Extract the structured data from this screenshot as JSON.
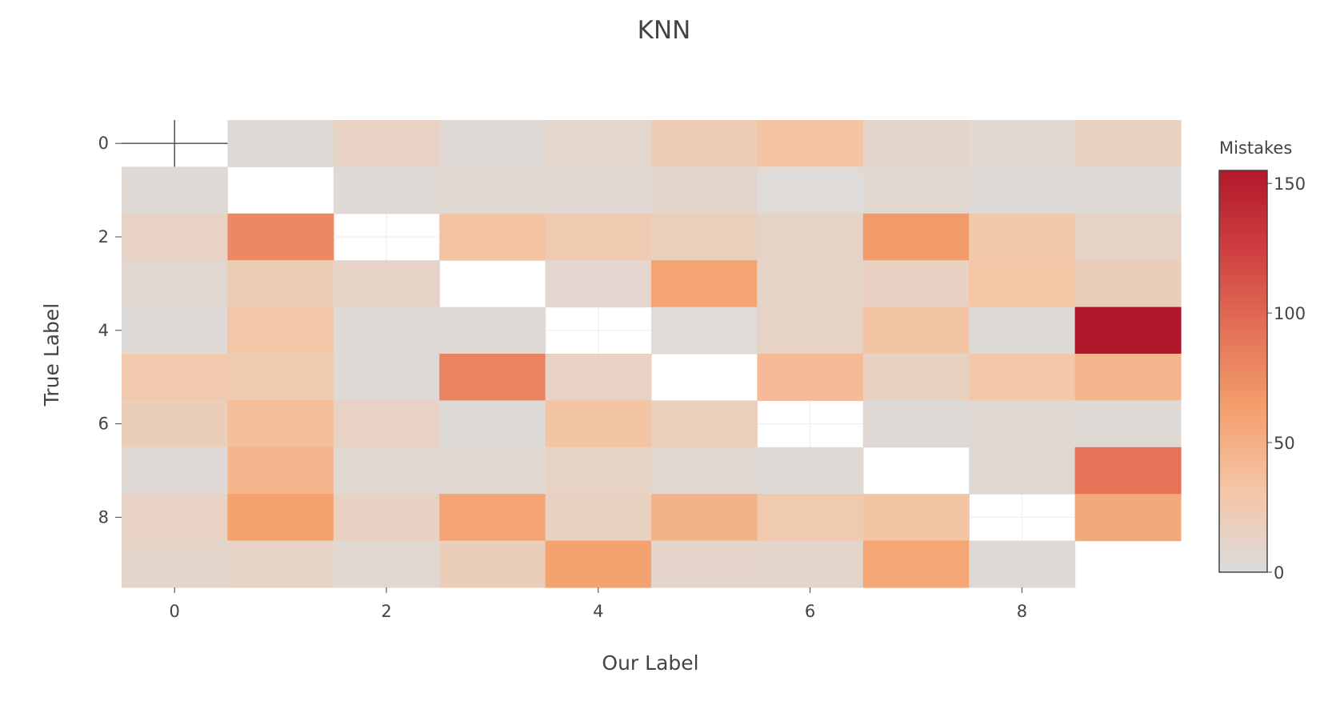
{
  "chart_data": {
    "type": "heatmap",
    "title": "KNN",
    "xlabel": "Our Label",
    "ylabel": "True Label",
    "x_categories": [
      0,
      1,
      2,
      3,
      4,
      5,
      6,
      7,
      8,
      9
    ],
    "y_categories": [
      0,
      1,
      2,
      3,
      4,
      5,
      6,
      7,
      8,
      9
    ],
    "x_tick_labels": [
      "0",
      "2",
      "4",
      "6",
      "8"
    ],
    "y_tick_labels": [
      "0",
      "2",
      "4",
      "6",
      "8"
    ],
    "z": [
      [
        null,
        3,
        14,
        4,
        9,
        22,
        33,
        10,
        5,
        16
      ],
      [
        4,
        null,
        4,
        6,
        5,
        10,
        2,
        6,
        3,
        3
      ],
      [
        14,
        78,
        null,
        33,
        25,
        18,
        12,
        65,
        28,
        13
      ],
      [
        7,
        22,
        12,
        null,
        8,
        60,
        12,
        15,
        31,
        20
      ],
      [
        3,
        30,
        4,
        3,
        null,
        2,
        13,
        32,
        3,
        155
      ],
      [
        27,
        24,
        4,
        82,
        14,
        null,
        40,
        16,
        30,
        45
      ],
      [
        20,
        38,
        14,
        3,
        32,
        18,
        null,
        4,
        5,
        4
      ],
      [
        4,
        45,
        5,
        6,
        13,
        7,
        4,
        null,
        5,
        92
      ],
      [
        14,
        62,
        15,
        60,
        16,
        48,
        26,
        32,
        null,
        55
      ],
      [
        10,
        13,
        6,
        20,
        61,
        11,
        10,
        58,
        4,
        null
      ]
    ],
    "colorscale": [
      [
        0.0,
        "#dcdcdc"
      ],
      [
        0.2,
        "#f4c6a6"
      ],
      [
        0.4,
        "#f4a16e"
      ],
      [
        0.6,
        "#e47257"
      ],
      [
        0.8,
        "#cf4041"
      ],
      [
        1.0,
        "#b2182b"
      ]
    ],
    "zmin": 0,
    "zmax": 155,
    "colorbar": {
      "title": "Mistakes",
      "tick_values": [
        0,
        50,
        100,
        150
      ],
      "tick_labels": [
        "0",
        "50",
        "100",
        "150"
      ]
    },
    "grid": false,
    "legend": "colorbar-right"
  }
}
